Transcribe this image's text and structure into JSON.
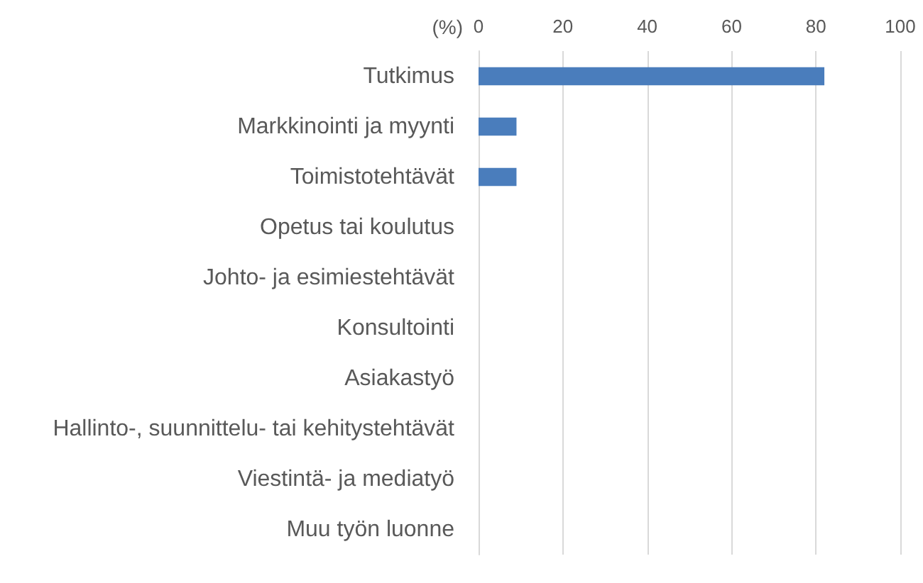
{
  "chart_data": {
    "type": "bar",
    "orientation": "horizontal",
    "xlabel": "(%)",
    "categories": [
      "Tutkimus",
      "Markkinointi ja myynti",
      "Toimistotehtävät",
      "Opetus tai koulutus",
      "Johto- ja esimiestehtävät",
      "Konsultointi",
      "Asiakastyö",
      "Hallinto-, suunnittelu- tai kehitystehtävät",
      "Viestintä- ja mediatyö",
      "Muu työn luonne"
    ],
    "values": [
      82,
      9,
      9,
      0,
      0,
      0,
      0,
      0,
      0,
      0
    ],
    "color": "#4a7dbc",
    "xlim": [
      0,
      100
    ],
    "xticks": [
      0,
      20,
      40,
      60,
      80,
      100
    ],
    "grid": "x"
  }
}
